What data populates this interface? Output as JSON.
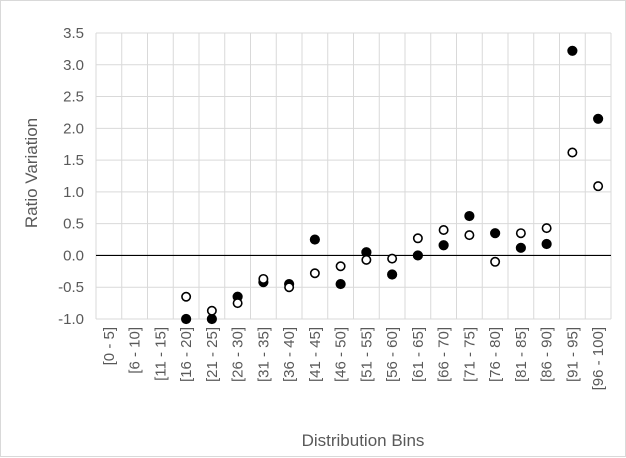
{
  "chart_data": {
    "type": "scatter",
    "xlabel": "Distribution Bins",
    "ylabel": "Ratio Variation",
    "ylim": [
      -1.0,
      3.5
    ],
    "y_ticks": [
      "-1.0",
      "-0.5",
      "0.0",
      "0.5",
      "1.0",
      "1.5",
      "2.0",
      "2.5",
      "3.0",
      "3.5"
    ],
    "grid": true,
    "categories": [
      "[0 - 5]",
      "[6 - 10]",
      "[11 - 15]",
      "[16 - 20]",
      "[21 - 25]",
      "[26 - 30]",
      "[31 - 35]",
      "[36 - 40]",
      "[41 - 45]",
      "[46 - 50]",
      "[51 - 55]",
      "[56 - 60]",
      "[61 - 65]",
      "[66 - 70]",
      "[71 - 75]",
      "[76 - 80]",
      "[81 - 85]",
      "[86 - 90]",
      "[91 - 95]",
      "[96 - 100]"
    ],
    "series": [
      {
        "marker": "filled-circle",
        "color": "#000000",
        "values": [
          null,
          null,
          null,
          -1.0,
          -1.0,
          -0.65,
          -0.42,
          -0.45,
          0.25,
          -0.45,
          0.05,
          -0.3,
          0.0,
          0.16,
          0.62,
          0.35,
          0.12,
          0.18,
          3.22,
          2.15
        ]
      },
      {
        "marker": "open-circle",
        "color": "#000000",
        "values": [
          null,
          null,
          null,
          -0.65,
          -0.87,
          -0.75,
          -0.37,
          -0.5,
          -0.28,
          -0.17,
          -0.07,
          -0.05,
          0.27,
          0.4,
          0.32,
          -0.1,
          0.35,
          0.43,
          1.62,
          1.09
        ]
      }
    ]
  }
}
